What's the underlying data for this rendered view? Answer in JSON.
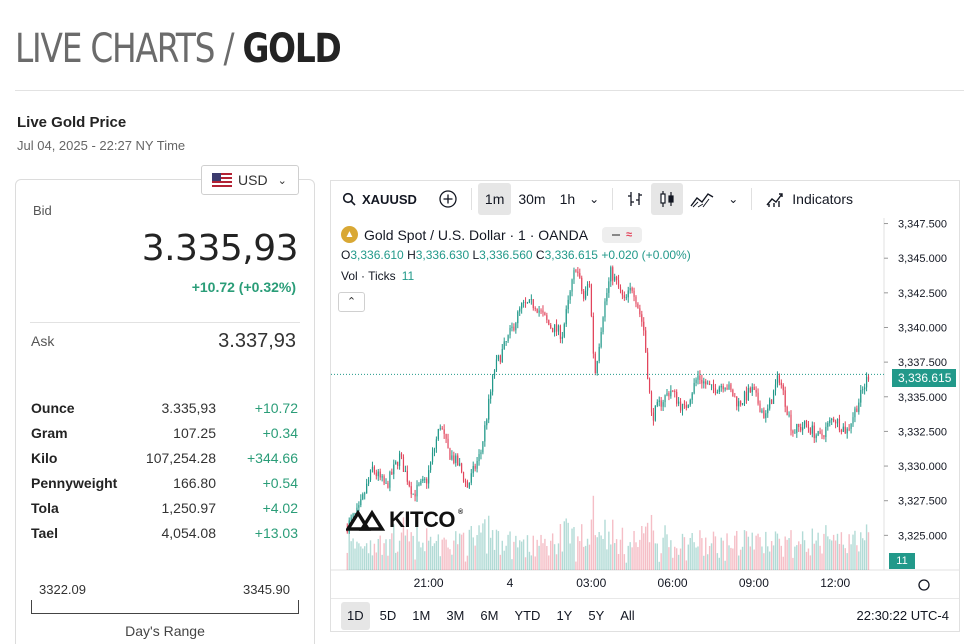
{
  "header": {
    "title_light": "LIVE CHARTS / ",
    "title_bold": "GOLD"
  },
  "live": {
    "label": "Live Gold Price",
    "time": "Jul 04, 2025 - 22:27 NY Time"
  },
  "currency": {
    "code": "USD",
    "flag_icon": "us-flag-icon"
  },
  "bid": {
    "label": "Bid",
    "value": "3.335,93",
    "change": "+10.72 (+0.32%)"
  },
  "ask": {
    "label": "Ask",
    "value": "3.337,93"
  },
  "units": [
    {
      "name": "Ounce",
      "price": "3.335,93",
      "change": "+10.72"
    },
    {
      "name": "Gram",
      "price": "107.25",
      "change": "+0.34"
    },
    {
      "name": "Kilo",
      "price": "107,254.28",
      "change": "+344.66"
    },
    {
      "name": "Pennyweight",
      "price": "166.80",
      "change": "+0.54"
    },
    {
      "name": "Tola",
      "price": "1,250.97",
      "change": "+4.02"
    },
    {
      "name": "Tael",
      "price": "4,054.08",
      "change": "+13.03"
    }
  ],
  "day_range": {
    "low": "3322.09",
    "high": "3345.90",
    "label": "Day's Range"
  },
  "toolbar": {
    "symbol": "XAUUSD",
    "intervals": [
      "1m",
      "30m",
      "1h"
    ],
    "active_interval": "1m",
    "indicators_label": "Indicators"
  },
  "chart_header": {
    "title": "Gold Spot / U.S. Dollar · 1 · OANDA",
    "o_label": "O",
    "o": "3,336.610",
    "h_label": "H",
    "h": "3,336.630",
    "l_label": "L",
    "l": "3,336.560",
    "c_label": "C",
    "c": "3,336.615",
    "change": "+0.020 (+0.00%)",
    "vol_label": "Vol · Ticks",
    "vol_value": "11"
  },
  "price_tag": "3,336.615",
  "volume_tag": "11",
  "logo_text": "KITCO",
  "ranges": [
    "1D",
    "5D",
    "1M",
    "3M",
    "6M",
    "YTD",
    "1Y",
    "5Y",
    "All"
  ],
  "active_range": "1D",
  "clock": "22:30:22 UTC-4",
  "colors": {
    "up": "#22998a",
    "down": "#e2455c",
    "accent_green": "#2a9d78"
  },
  "chart_data": {
    "type": "line",
    "title": "Gold Spot / U.S. Dollar · 1 · OANDA",
    "x_ticks": [
      "21:00",
      "4",
      "03:00",
      "06:00",
      "09:00",
      "12:00"
    ],
    "y_ticks": [
      3347.5,
      3345.0,
      3342.5,
      3340.0,
      3337.5,
      3335.0,
      3332.5,
      3330.0,
      3327.5,
      3325.0
    ],
    "y_tick_labels": [
      "3,347.500",
      "3,345.000",
      "3,342.500",
      "3,340.000",
      "3,337.500",
      "3,335.000",
      "3,332.500",
      "3,330.000",
      "3,327.500",
      "3,325.000"
    ],
    "ylim": [
      3322.5,
      3347.9
    ],
    "x_hours": [
      -6.0,
      -5.5,
      -5.0,
      -4.5,
      -4.0,
      -3.5,
      -3.0,
      -2.5,
      -2.2,
      -1.8,
      -1.5,
      -1.0,
      -0.5,
      0.0,
      0.5,
      1.0,
      1.5,
      2.0,
      2.5,
      2.8,
      3.0,
      3.2,
      3.5,
      3.8,
      4.0,
      4.3,
      4.6,
      5.0,
      5.3,
      5.6,
      6.0,
      6.5,
      7.0,
      7.5,
      8.0,
      8.5,
      9.0,
      9.5,
      10.0,
      10.5,
      11.0,
      11.5,
      12.0,
      12.5,
      13.0,
      13.3
    ],
    "prices": [
      3325.5,
      3326.8,
      3329.8,
      3328.5,
      3330.7,
      3328.0,
      3329.0,
      3333.0,
      3331.0,
      3330.0,
      3328.5,
      3331.0,
      3337.0,
      3339.2,
      3341.5,
      3341.7,
      3340.2,
      3339.5,
      3344.5,
      3342.0,
      3343.5,
      3336.5,
      3341.0,
      3344.0,
      3343.2,
      3341.8,
      3343.0,
      3340.0,
      3333.5,
      3334.5,
      3335.5,
      3334.0,
      3336.5,
      3335.5,
      3336.0,
      3334.5,
      3335.5,
      3333.5,
      3336.5,
      3332.5,
      3333.0,
      3332.0,
      3333.5,
      3332.5,
      3335.0,
      3336.6
    ],
    "last_price": 3336.615
  }
}
